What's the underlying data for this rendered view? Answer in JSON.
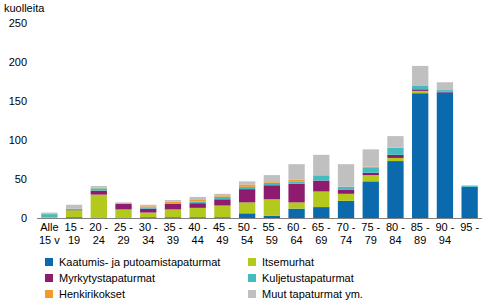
{
  "chart_data": {
    "type": "bar",
    "stacked": true,
    "grid": false,
    "legend": "bottom",
    "y_label": "kuolleita",
    "categories": [
      "Alle\n15 v",
      "15 -\n19",
      "20 -\n24",
      "25 -\n29",
      "30 -\n34",
      "35 -\n39",
      "40 -\n44",
      "45 -\n49",
      "50 -\n54",
      "55 -\n59",
      "60 -\n64",
      "65 -\n69",
      "70 -\n74",
      "75 -\n79",
      "80 -\n84",
      "85 -\n89",
      "90 -\n94",
      "95 -"
    ],
    "ylim": [
      0,
      250
    ],
    "yticks": [
      0,
      50,
      100,
      150,
      200,
      250
    ],
    "series": [
      {
        "name": "Kaatumis- ja putoamistapaturmat",
        "color": "#0a6aad",
        "values": [
          0,
          1,
          0,
          0,
          1,
          1,
          1,
          1,
          6,
          3,
          12,
          14,
          22,
          47,
          73,
          160,
          161,
          40
        ]
      },
      {
        "name": "Itsemurhat",
        "color": "#b3c91d",
        "values": [
          1,
          9,
          30,
          11,
          6,
          10,
          12,
          15,
          14,
          21,
          8,
          20,
          9,
          8,
          4,
          3,
          0,
          0
        ]
      },
      {
        "name": "Myrkytystapaturmat",
        "color": "#8e1b6e",
        "values": [
          0,
          1,
          5,
          7,
          5,
          7,
          6,
          8,
          17,
          18,
          24,
          14,
          5,
          3,
          4,
          2,
          1,
          0
        ]
      },
      {
        "name": "Kuljetustapaturmat",
        "color": "#44bcbf",
        "values": [
          4,
          1,
          3,
          0,
          1,
          1,
          2,
          3,
          3,
          3,
          3,
          6,
          4,
          7,
          9,
          5,
          2,
          1
        ]
      },
      {
        "name": "Henkirikokset",
        "color": "#f29a2e",
        "values": [
          1,
          0,
          1,
          1,
          2,
          2,
          3,
          1,
          3,
          1,
          2,
          1,
          0,
          1,
          0,
          0,
          0,
          0
        ]
      },
      {
        "name": "Muut tapaturmat ym.",
        "color": "#c0c0c0",
        "values": [
          1,
          5,
          2,
          1,
          2,
          2,
          3,
          3,
          4,
          9,
          20,
          26,
          29,
          22,
          15,
          25,
          10,
          1
        ]
      }
    ]
  }
}
